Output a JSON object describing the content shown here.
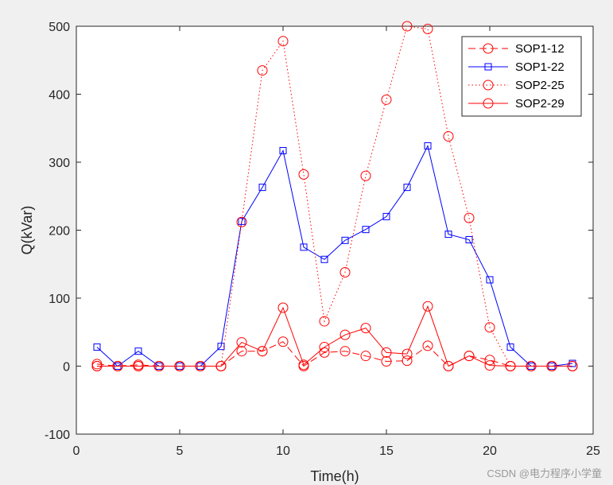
{
  "chart_data": {
    "type": "line",
    "xlabel": "Time(h)",
    "ylabel": "Q(kVar)",
    "xlim": [
      0,
      25
    ],
    "ylim": [
      -100,
      500
    ],
    "xticks": [
      0,
      5,
      10,
      15,
      20,
      25
    ],
    "yticks": [
      -100,
      0,
      100,
      200,
      300,
      400,
      500
    ],
    "x": [
      1,
      2,
      3,
      4,
      5,
      6,
      7,
      8,
      9,
      10,
      11,
      12,
      13,
      14,
      15,
      16,
      17,
      18,
      19,
      20,
      21,
      22,
      23,
      24
    ],
    "series": [
      {
        "name": "SOP1-12",
        "color": "#ff0000",
        "line": "dashed",
        "marker": "circle",
        "values": [
          3,
          0,
          2,
          0,
          0,
          0,
          0,
          22,
          22,
          36,
          0,
          20,
          22,
          15,
          7,
          8,
          30,
          0,
          15,
          9,
          0,
          0,
          0,
          0
        ]
      },
      {
        "name": "SOP1-22",
        "color": "#0000ff",
        "line": "solid",
        "marker": "square",
        "values": [
          28,
          0,
          22,
          0,
          0,
          0,
          29,
          213,
          263,
          317,
          175,
          157,
          185,
          201,
          220,
          263,
          324,
          194,
          186,
          127,
          28,
          0,
          0,
          4
        ]
      },
      {
        "name": "SOP2-25",
        "color": "#ff0000",
        "line": "dotted",
        "marker": "circle",
        "values": [
          0,
          0,
          0,
          0,
          0,
          0,
          0,
          212,
          435,
          478,
          282,
          66,
          138,
          280,
          392,
          500,
          496,
          338,
          218,
          57,
          0,
          0,
          0,
          0
        ]
      },
      {
        "name": "SOP2-29",
        "color": "#ff0000",
        "line": "solid",
        "marker": "circle",
        "values": [
          0,
          0,
          0,
          0,
          0,
          0,
          0,
          35,
          22,
          86,
          2,
          28,
          46,
          56,
          20,
          18,
          88,
          0,
          15,
          1,
          0,
          0,
          0,
          0
        ]
      }
    ],
    "legend": {
      "position": "top-right"
    }
  },
  "watermark": "CSDN @电力程序小学童"
}
